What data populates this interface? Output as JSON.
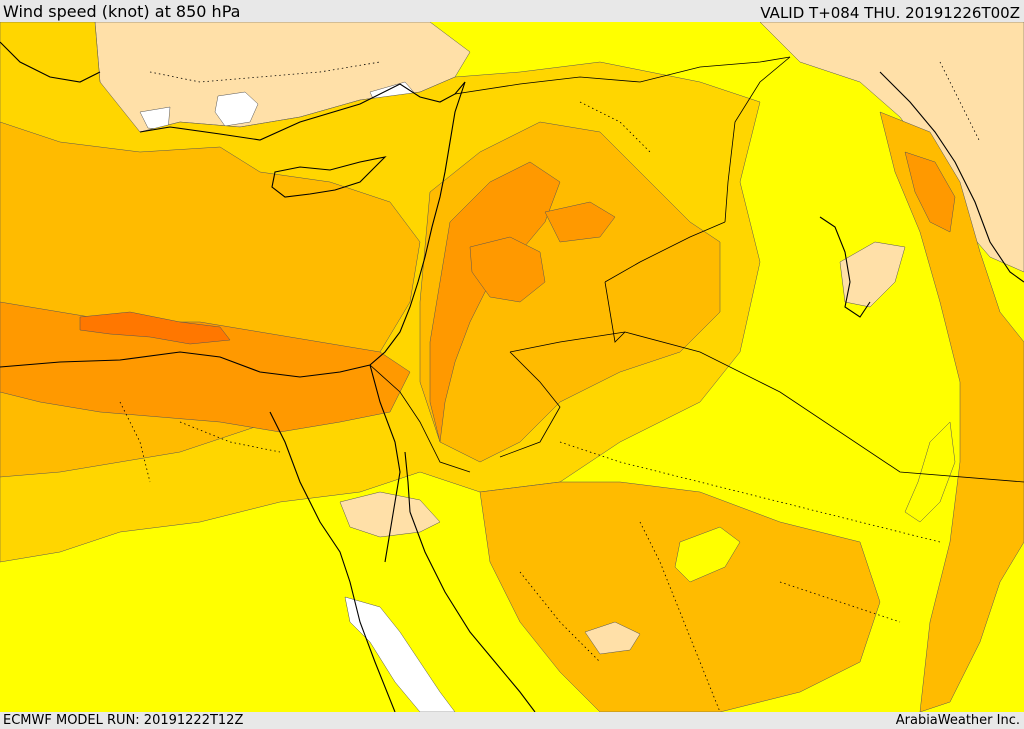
{
  "header": {
    "title": "Wind speed (knot) at 850 hPa",
    "valid": "VALID T+084 THU. 20191226T00Z"
  },
  "footer": {
    "model_run": "ECMWF MODEL RUN: 20191222T12Z",
    "credit": "ArabiaWeather Inc."
  },
  "colors": {
    "lightest": "#ffffff",
    "light": "#ffe0a8",
    "yellow": "#ffff00",
    "gold": "#ffd600",
    "amber": "#ffbb00",
    "orange": "#ff9900",
    "deep_orange": "#ff7700",
    "coastline": "#000000",
    "contour": "#555555"
  }
}
